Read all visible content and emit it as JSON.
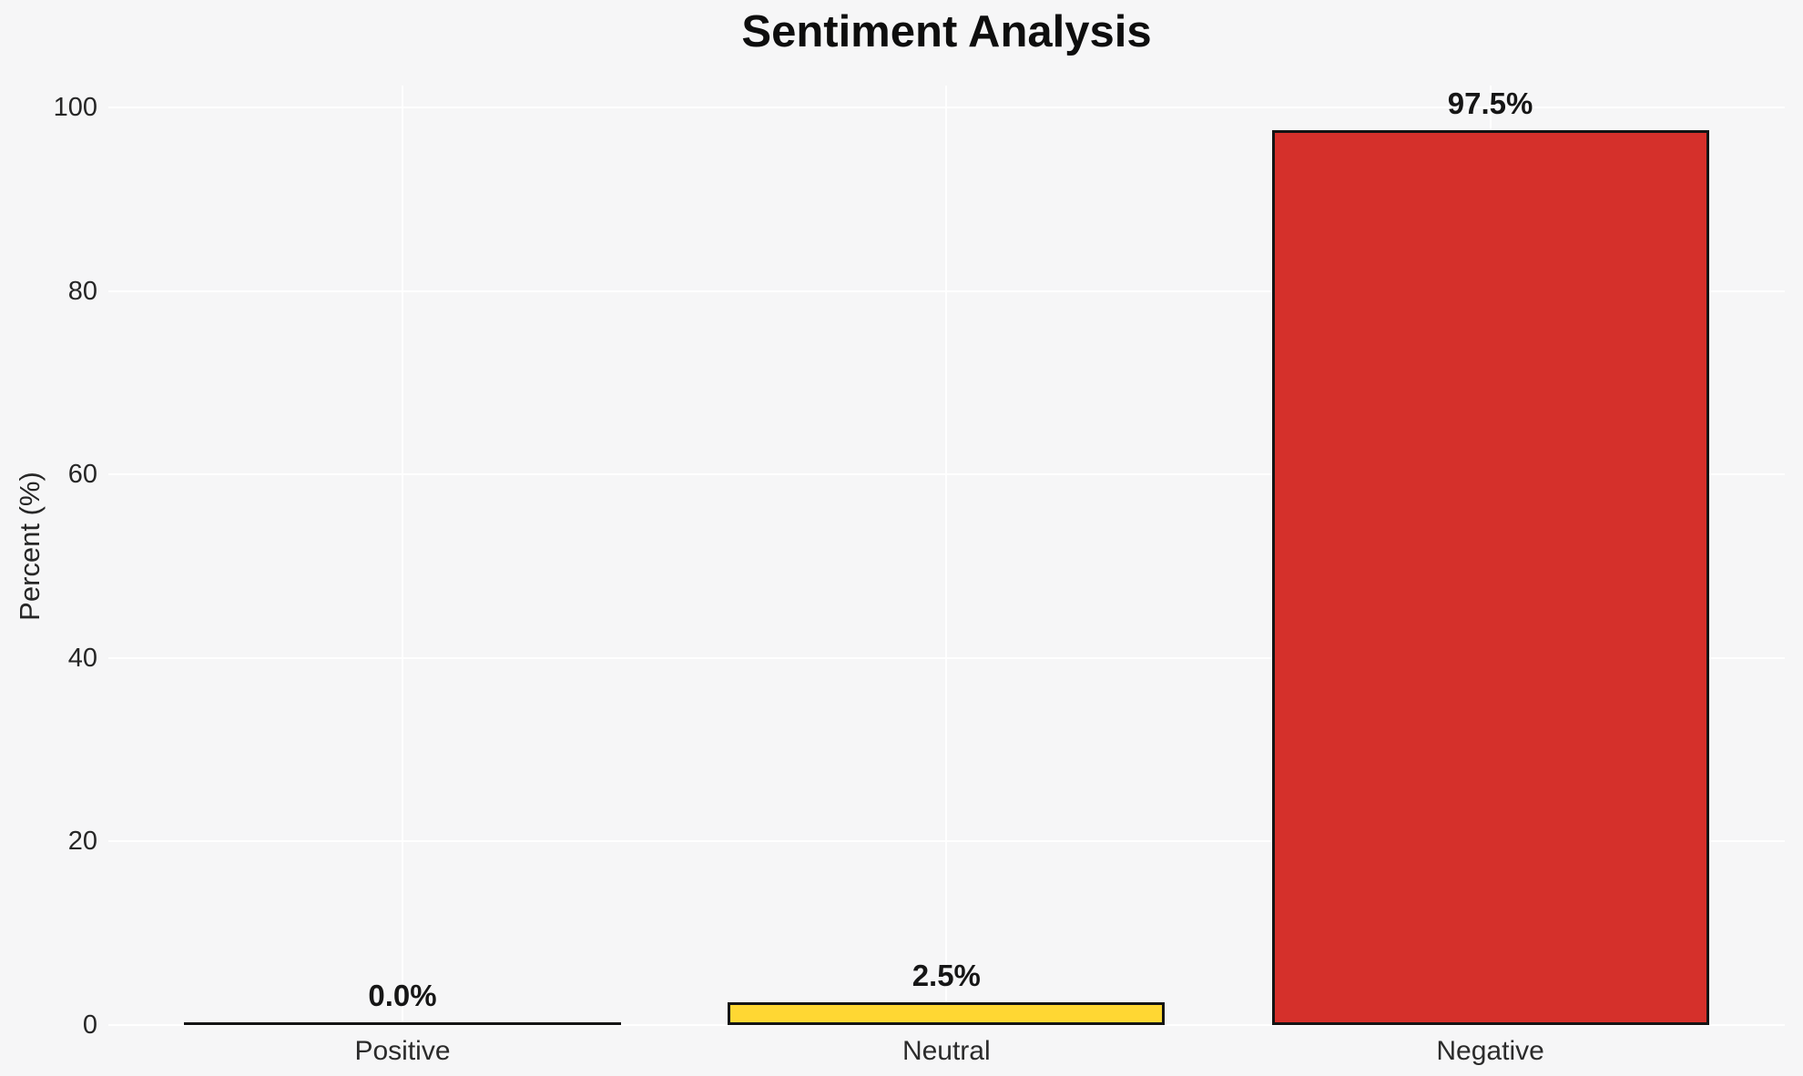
{
  "chart_data": {
    "type": "bar",
    "title": "Sentiment Analysis",
    "xlabel": "",
    "ylabel": "Percent (%)",
    "categories": [
      "Positive",
      "Neutral",
      "Negative"
    ],
    "values": [
      0.0,
      2.5,
      97.5
    ],
    "value_labels": [
      "0.0%",
      "2.5%",
      "97.5%"
    ],
    "bar_colors": [
      null,
      "#ffd733",
      "#d5302b"
    ],
    "bar_edge_color": "#141414",
    "yticks": [
      0,
      20,
      40,
      60,
      80,
      100
    ],
    "ytick_labels": [
      "0",
      "20",
      "40",
      "60",
      "80",
      "100"
    ],
    "ylim": [
      0,
      102.4
    ],
    "grid": true,
    "gridline_color": "#ffffff",
    "background_color": "#f6f6f7",
    "legend_position": "none"
  }
}
